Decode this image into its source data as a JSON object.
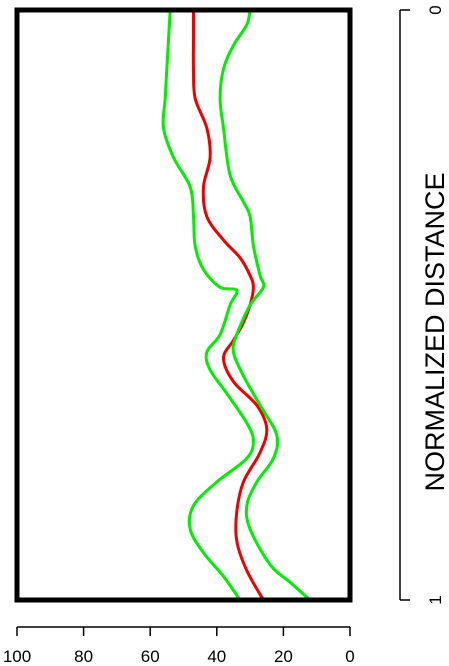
{
  "chart_data": {
    "type": "line",
    "title": "",
    "xlabel": "",
    "ylabel": "NORMALIZED DISTANCE",
    "xlim": [
      100,
      0
    ],
    "ylim": [
      0,
      1
    ],
    "x_ticks": [
      100,
      80,
      60,
      40,
      20,
      0
    ],
    "y_ticks": [
      0,
      1
    ],
    "grid": false,
    "legend": "none",
    "orientation": "vertical-profile",
    "series": [
      {
        "color": "#00ee00",
        "points": [
          [
            54,
            0.0
          ],
          [
            54.5,
            0.05
          ],
          [
            55,
            0.1
          ],
          [
            55.5,
            0.15
          ],
          [
            56,
            0.2
          ],
          [
            53,
            0.25
          ],
          [
            48,
            0.3
          ],
          [
            47,
            0.35
          ],
          [
            46.5,
            0.4
          ],
          [
            44,
            0.44
          ],
          [
            39,
            0.47
          ],
          [
            34,
            0.475
          ],
          [
            36,
            0.5
          ],
          [
            39,
            0.55
          ],
          [
            43,
            0.58
          ],
          [
            42,
            0.61
          ],
          [
            37,
            0.65
          ],
          [
            31,
            0.7
          ],
          [
            29,
            0.73
          ],
          [
            31,
            0.76
          ],
          [
            40,
            0.8
          ],
          [
            47,
            0.84
          ],
          [
            48,
            0.88
          ],
          [
            44,
            0.92
          ],
          [
            38,
            0.96
          ],
          [
            33,
            1.0
          ]
        ]
      },
      {
        "color": "#ee0000",
        "points": [
          [
            47,
            0.0
          ],
          [
            47,
            0.05
          ],
          [
            47,
            0.1
          ],
          [
            46.5,
            0.15
          ],
          [
            43,
            0.2
          ],
          [
            42,
            0.25
          ],
          [
            44,
            0.3
          ],
          [
            43,
            0.35
          ],
          [
            38,
            0.39
          ],
          [
            33,
            0.42
          ],
          [
            30,
            0.45
          ],
          [
            29,
            0.47
          ],
          [
            30,
            0.5
          ],
          [
            32,
            0.53
          ],
          [
            35,
            0.56
          ],
          [
            38,
            0.59
          ],
          [
            35,
            0.63
          ],
          [
            28,
            0.67
          ],
          [
            25,
            0.71
          ],
          [
            27,
            0.75
          ],
          [
            32,
            0.8
          ],
          [
            34,
            0.85
          ],
          [
            34,
            0.9
          ],
          [
            31,
            0.95
          ],
          [
            26,
            1.0
          ]
        ]
      },
      {
        "color": "#00ee00",
        "points": [
          [
            30,
            0.0
          ],
          [
            31,
            0.025
          ],
          [
            35,
            0.06
          ],
          [
            38,
            0.1
          ],
          [
            39,
            0.15
          ],
          [
            38,
            0.2
          ],
          [
            36,
            0.28
          ],
          [
            32,
            0.325
          ],
          [
            30,
            0.35
          ],
          [
            29,
            0.4
          ],
          [
            27,
            0.45
          ],
          [
            26,
            0.47
          ],
          [
            30,
            0.5
          ],
          [
            34,
            0.55
          ],
          [
            35,
            0.58
          ],
          [
            32,
            0.62
          ],
          [
            27,
            0.67
          ],
          [
            22,
            0.72
          ],
          [
            23,
            0.76
          ],
          [
            28,
            0.8
          ],
          [
            31,
            0.84
          ],
          [
            30,
            0.88
          ],
          [
            24,
            0.94
          ],
          [
            18,
            0.97
          ],
          [
            12,
            1.0
          ]
        ]
      }
    ]
  }
}
